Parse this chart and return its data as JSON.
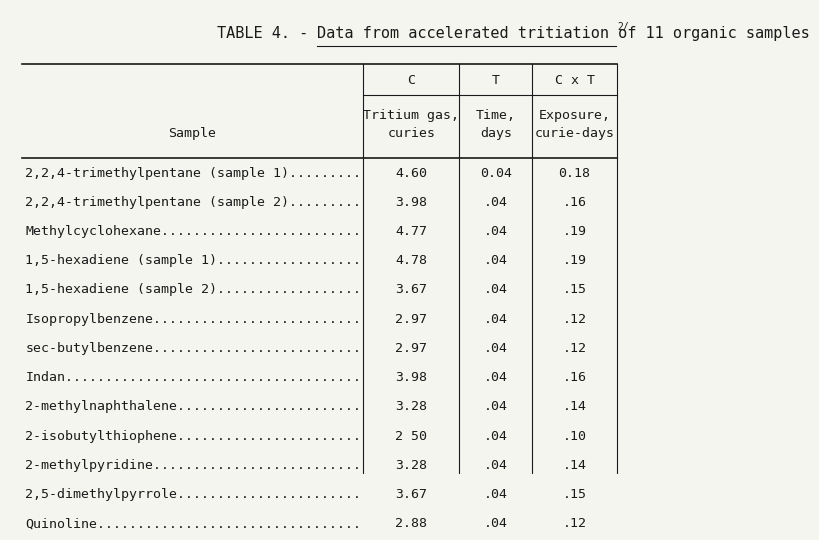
{
  "title": "TABLE 4. - Data from accelerated tritiation of 11 organic samples",
  "title_superscript": "2/",
  "col_headers_top": [
    "C",
    "T",
    "C x T"
  ],
  "col_headers_sub": [
    "Tritium gas,\ncuries",
    "Time,\ndays",
    "Exposure,\ncurie-days"
  ],
  "sample_label": "Sample",
  "samples": [
    "2,2,4-trimethylpentane (sample 1).........",
    "2,2,4-trimethylpentane (sample 2).........",
    "Methylcyclohexane.........................",
    "1,5-hexadiene (sample 1)..................",
    "1,5-hexadiene (sample 2)..................",
    "Isopropylbenzene..........................",
    "sec-butylbenzene..........................",
    "Indan.....................................",
    "2-methylnaphthalene.......................",
    "2-isobutylthiophene.......................",
    "2-methylpyridine..........................",
    "2,5-dimethylpyrrole.......................",
    "Quinoline................................."
  ],
  "col_C": [
    "4.60",
    "3.98",
    "4.77",
    "4.78",
    "3.67",
    "2.97",
    "2.97",
    "3.98",
    "3.28",
    "2 50",
    "3.28",
    "3.67",
    "2.88"
  ],
  "col_T": [
    "0.04",
    ".04",
    ".04",
    ".04",
    ".04",
    ".04",
    ".04",
    ".04",
    ".04",
    ".04",
    ".04",
    ".04",
    ".04"
  ],
  "col_CxT": [
    "0.18",
    ".16",
    ".19",
    ".19",
    ".15",
    ".12",
    ".12",
    ".16",
    ".14",
    ".10",
    ".14",
    ".15",
    ".12"
  ],
  "bg_color": "#f5f5f0",
  "text_color": "#1a1a1a",
  "font_size": 9.5,
  "title_font_size": 11
}
